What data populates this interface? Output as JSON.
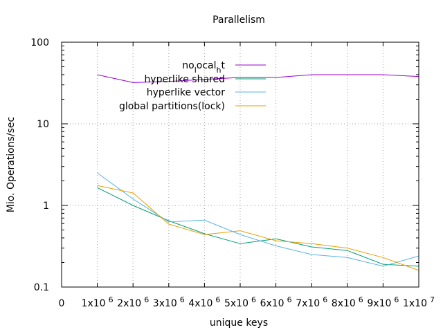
{
  "chart_data": {
    "type": "line",
    "title": "Parallelism",
    "xlabel": "unique keys",
    "ylabel": "Mio. Operations/sec",
    "xlim": [
      0,
      10000000
    ],
    "ylim": [
      0.1,
      100
    ],
    "yscale": "log",
    "grid": true,
    "legend_position": "top-right",
    "x_ticks": [
      {
        "value": 0,
        "mantissa": "0",
        "exponent": ""
      },
      {
        "value": 1000000,
        "mantissa": "1x10",
        "exponent": "6"
      },
      {
        "value": 2000000,
        "mantissa": "2x10",
        "exponent": "6"
      },
      {
        "value": 3000000,
        "mantissa": "3x10",
        "exponent": "6"
      },
      {
        "value": 4000000,
        "mantissa": "4x10",
        "exponent": "6"
      },
      {
        "value": 5000000,
        "mantissa": "5x10",
        "exponent": "6"
      },
      {
        "value": 6000000,
        "mantissa": "6x10",
        "exponent": "6"
      },
      {
        "value": 7000000,
        "mantissa": "7x10",
        "exponent": "6"
      },
      {
        "value": 8000000,
        "mantissa": "8x10",
        "exponent": "6"
      },
      {
        "value": 9000000,
        "mantissa": "9x10",
        "exponent": "6"
      },
      {
        "value": 10000000,
        "mantissa": "1x10",
        "exponent": "7"
      }
    ],
    "y_ticks": [
      {
        "value": 0.1,
        "label": "0.1"
      },
      {
        "value": 1,
        "label": "1"
      },
      {
        "value": 10,
        "label": "10"
      },
      {
        "value": 100,
        "label": "100"
      }
    ],
    "x": [
      1000000,
      2000000,
      3000000,
      4000000,
      5000000,
      6000000,
      7000000,
      8000000,
      9000000,
      10000000
    ],
    "series": [
      {
        "name": "no_local_ht",
        "legend_parts": [
          "no",
          "l",
          "ocal",
          "h",
          "t"
        ],
        "color": "#9400d3",
        "values": [
          40,
          32,
          33,
          35,
          37,
          37,
          40,
          40,
          40,
          38
        ]
      },
      {
        "name": "hyperlike shared",
        "color": "#009e73",
        "values": [
          1.65,
          1.0,
          0.65,
          0.45,
          0.34,
          0.39,
          0.31,
          0.28,
          0.19,
          0.18
        ]
      },
      {
        "name": "hyperlike vector",
        "color": "#56b4e9",
        "values": [
          2.5,
          1.2,
          0.63,
          0.66,
          0.44,
          0.32,
          0.25,
          0.23,
          0.18,
          0.24
        ]
      },
      {
        "name": "global partitions(lock)",
        "color": "#e69f00",
        "values": [
          1.75,
          1.42,
          0.59,
          0.44,
          0.49,
          0.37,
          0.34,
          0.3,
          0.23,
          0.16
        ]
      }
    ]
  }
}
